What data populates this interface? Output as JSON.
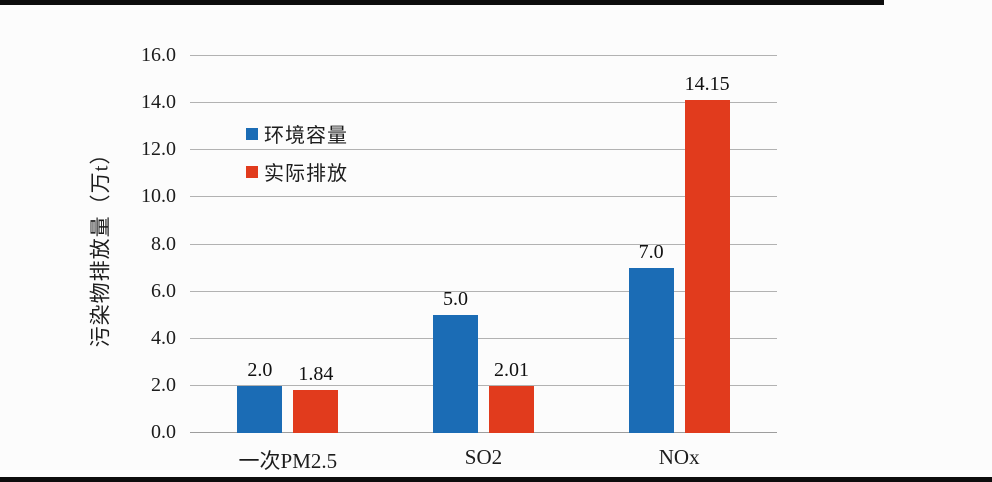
{
  "frame": {
    "background": "#fcfcfc",
    "letterbox_color": "#0d0d0d"
  },
  "chart_data": {
    "type": "bar",
    "title": "",
    "categories": [
      "一次PM2.5",
      "SO2",
      "NOx"
    ],
    "series": [
      {
        "name": "环境容量",
        "color": "#1b6cb5",
        "values": [
          2.0,
          5.0,
          7.0
        ],
        "value_labels": [
          "2.0",
          "5.0",
          "7.0"
        ]
      },
      {
        "name": "实际排放",
        "color": "#e13b1d",
        "values": [
          1.84,
          2.01,
          14.15
        ],
        "value_labels": [
          "1.84",
          "2.01",
          "14.15"
        ]
      }
    ],
    "xlabel": "",
    "ylabel": "污染物排放量（万t）",
    "ylim": [
      0,
      16
    ],
    "ytick_step": 2,
    "ytick_labels": [
      "0.0",
      "2.0",
      "4.0",
      "6.0",
      "8.0",
      "10.0",
      "12.0",
      "14.0",
      "16.0"
    ],
    "grid": true,
    "grid_color": "#b2b2b2",
    "legend_position": "inside-upper-left",
    "text_color": "#1c1c1c"
  }
}
